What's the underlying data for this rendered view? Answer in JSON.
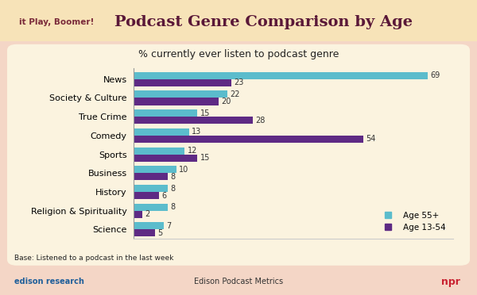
{
  "chart_data": {
    "type": "bar",
    "orientation": "horizontal",
    "title": "Podcast Genre Comparison by Age",
    "subtitle": "% currently ever listen to podcast genre",
    "note": "Base: Listened to a podcast in the last week",
    "header": "it Play, Boomer!",
    "footer": "Edison Podcast Metrics",
    "logos": [
      "edison research",
      "npr"
    ],
    "categories": [
      "News",
      "Society & Culture",
      "True Crime",
      "Comedy",
      "Sports",
      "Business",
      "History",
      "Religion & Spirituality",
      "Science"
    ],
    "series": [
      {
        "name": "Age 55+",
        "color": "#5bbccc",
        "values": [
          69,
          22,
          15,
          13,
          12,
          10,
          8,
          8,
          7
        ]
      },
      {
        "name": "Age 13-54",
        "color": "#5e2a84",
        "values": [
          23,
          20,
          28,
          54,
          15,
          8,
          6,
          2,
          5
        ]
      }
    ],
    "xlim": [
      0,
      75
    ],
    "data_labels": true,
    "tick_labels": "y",
    "legend": "lower right",
    "grid": false
  }
}
